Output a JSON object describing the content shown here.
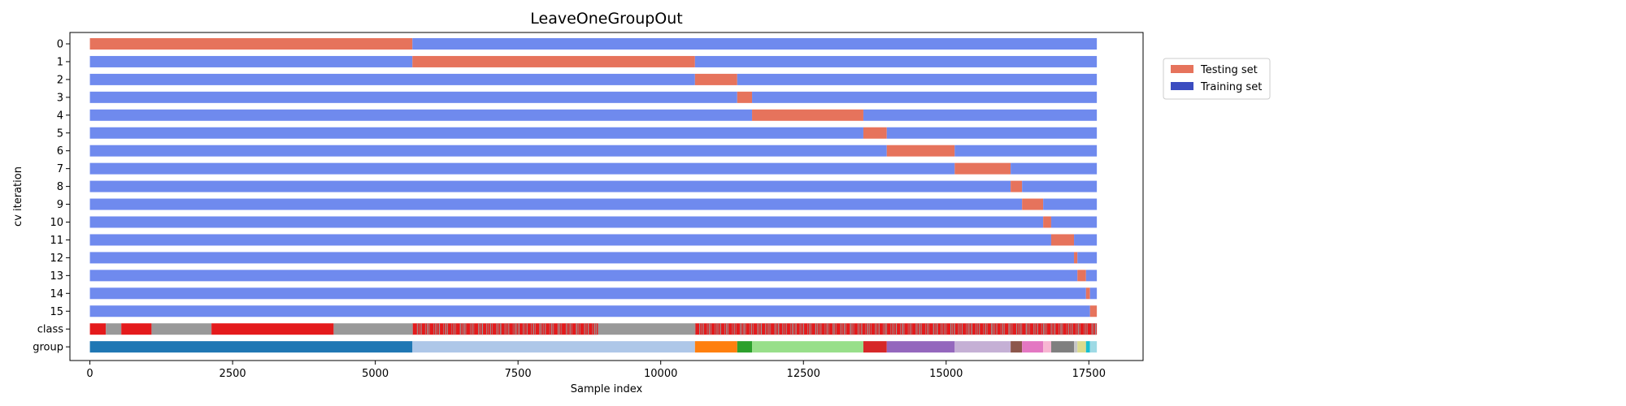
{
  "chart_data": {
    "type": "bar",
    "title": "LeaveOneGroupOut",
    "xlabel": "Sample index",
    "ylabel": "cv iteration",
    "xlim": [
      -350,
      18450
    ],
    "xticks": [
      0,
      2500,
      5000,
      7500,
      10000,
      12500,
      15000,
      17500
    ],
    "xtick_labels": [
      "0",
      "2500",
      "5000",
      "7500",
      "10000",
      "12500",
      "15000",
      "17500"
    ],
    "total_samples": 17640,
    "row_labels": [
      "0",
      "1",
      "2",
      "3",
      "4",
      "5",
      "6",
      "7",
      "8",
      "9",
      "10",
      "11",
      "12",
      "13",
      "14",
      "15",
      "class",
      "group"
    ],
    "legend": {
      "position": "upper-right-outside",
      "entries": [
        {
          "label": "Testing set",
          "color": "#e6735c"
        },
        {
          "label": "Training set",
          "color": "#3b4cc0"
        }
      ]
    },
    "colors": {
      "testing": "#e6735c",
      "training": "#6f8aee",
      "class_a": "#e41a1c",
      "class_b": "#999999"
    },
    "groups": [
      {
        "start": 0,
        "end": 5650,
        "color": "#1f77b4"
      },
      {
        "start": 5650,
        "end": 10600,
        "color": "#aec7e8"
      },
      {
        "start": 10600,
        "end": 11340,
        "color": "#ff7f0e"
      },
      {
        "start": 11340,
        "end": 11600,
        "color": "#2ca02c"
      },
      {
        "start": 11600,
        "end": 13550,
        "color": "#98df8a"
      },
      {
        "start": 13550,
        "end": 13960,
        "color": "#d62728"
      },
      {
        "start": 13960,
        "end": 15150,
        "color": "#9467bd"
      },
      {
        "start": 15150,
        "end": 16130,
        "color": "#c5b0d5"
      },
      {
        "start": 16130,
        "end": 16330,
        "color": "#8c564b"
      },
      {
        "start": 16330,
        "end": 16700,
        "color": "#e377c2"
      },
      {
        "start": 16700,
        "end": 16840,
        "color": "#f7b6d2"
      },
      {
        "start": 16840,
        "end": 17240,
        "color": "#7f7f7f"
      },
      {
        "start": 17240,
        "end": 17300,
        "color": "#c7c7c7"
      },
      {
        "start": 17300,
        "end": 17450,
        "color": "#dbdb8d"
      },
      {
        "start": 17450,
        "end": 17520,
        "color": "#17becf"
      },
      {
        "start": 17520,
        "end": 17640,
        "color": "#9edae5"
      }
    ],
    "class_segments": [
      {
        "start": 0,
        "end": 280,
        "cls": "a"
      },
      {
        "start": 280,
        "end": 550,
        "cls": "b"
      },
      {
        "start": 550,
        "end": 1080,
        "cls": "a"
      },
      {
        "start": 1080,
        "end": 2130,
        "cls": "b"
      },
      {
        "start": 2130,
        "end": 4270,
        "cls": "a"
      },
      {
        "start": 4270,
        "end": 5650,
        "cls": "b"
      },
      {
        "start": 5650,
        "end": 8900,
        "cls": "a",
        "stripes": 70
      },
      {
        "start": 8900,
        "end": 10600,
        "cls": "b"
      },
      {
        "start": 10600,
        "end": 17640,
        "cls": "a",
        "stripes": 160
      }
    ]
  }
}
